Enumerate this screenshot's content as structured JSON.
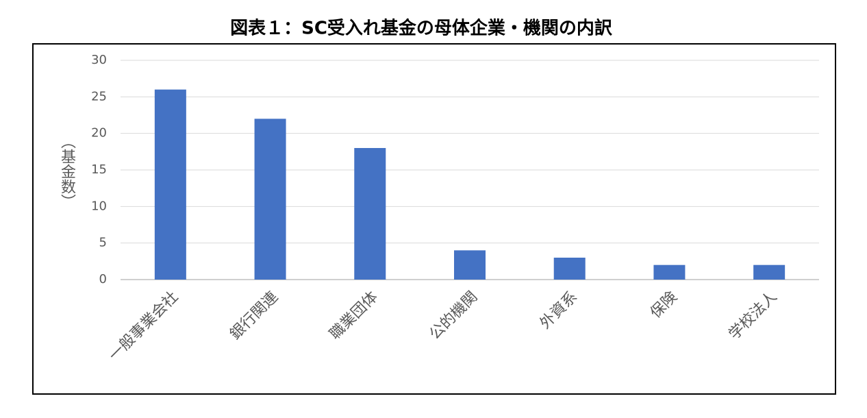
{
  "chart_data": {
    "type": "bar",
    "title": "図表１：SC受入れ基金の母体企業・機関の内訳",
    "y_label": "（基金数）",
    "categories": [
      "一般事業会社",
      "銀行関連",
      "職業団体",
      "公的機関",
      "外資系",
      "保険",
      "学校法人"
    ],
    "values": [
      26,
      22,
      18,
      4,
      3,
      2,
      2
    ],
    "color": "#4472c4",
    "ylim": [
      0,
      30
    ],
    "yticks": [
      0,
      5,
      10,
      15,
      20,
      25,
      30
    ],
    "grid": true
  }
}
